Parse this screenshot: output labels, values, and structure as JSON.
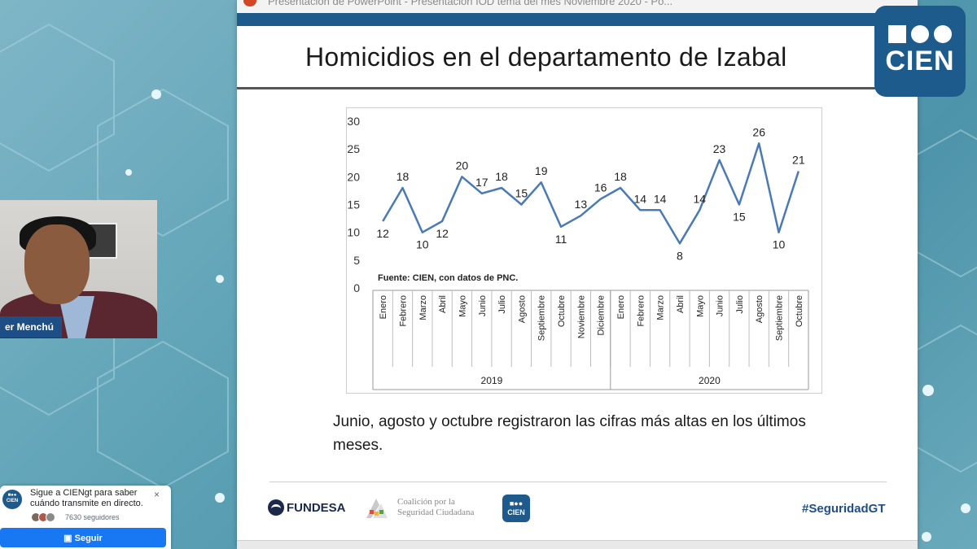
{
  "window": {
    "title": "Presentación de PowerPoint  -  Presentación IOD tema del mes Noviembre 2020 - Po...",
    "close_glyph": "✕"
  },
  "slide": {
    "title": "Homicidios en el departamento de Izabal",
    "bullet": "Junio, agosto y octubre registraron las cifras más altas en los últimos meses.",
    "footer": {
      "fundesa": "FUNDESA",
      "coalicion_line1": "Coalición por la",
      "coalicion_line2": "Seguridad Ciudadana",
      "cien": "CIEN",
      "hashtag": "#SeguridadGT"
    }
  },
  "speaker": {
    "name": "er Menchú"
  },
  "logo": {
    "text": "CIEN"
  },
  "follow_card": {
    "avatar_text": "CIEN",
    "message": "Sigue a CIENgt para saber cuándo transmite en directo.",
    "followers": "7630 seguidores",
    "button": "Seguir",
    "close_glyph": "×"
  },
  "colors": {
    "line": "#4a7ab5",
    "blue": "#1f5a8c"
  },
  "chart_data": {
    "type": "line",
    "source": "Fuente: CIEN, con datos de PNC.",
    "categories": [
      "Enero",
      "Febrero",
      "Marzo",
      "Abril",
      "Mayo",
      "Junio",
      "Julio",
      "Agosto",
      "Septiembre",
      "Octubre",
      "Noviembre",
      "Diciembre",
      "Enero",
      "Febrero",
      "Marzo",
      "Abril",
      "Mayo",
      "Junio",
      "Julio",
      "Agosto",
      "Septiembre",
      "Octubre"
    ],
    "groups": [
      {
        "label": "2019",
        "count": 12
      },
      {
        "label": "2020",
        "count": 10
      }
    ],
    "values": [
      12,
      18,
      10,
      12,
      20,
      17,
      18,
      15,
      19,
      11,
      13,
      16,
      18,
      14,
      14,
      8,
      14,
      23,
      15,
      26,
      10,
      21
    ],
    "yticks": [
      0,
      5,
      10,
      15,
      20,
      25,
      30
    ],
    "ylim": [
      0,
      30
    ],
    "label_pos": [
      "below",
      "above",
      "below",
      "below",
      "above",
      "above",
      "above",
      "above",
      "above",
      "below",
      "above",
      "above",
      "above",
      "above",
      "above",
      "below",
      "above",
      "above",
      "below",
      "above",
      "below",
      "above"
    ]
  }
}
